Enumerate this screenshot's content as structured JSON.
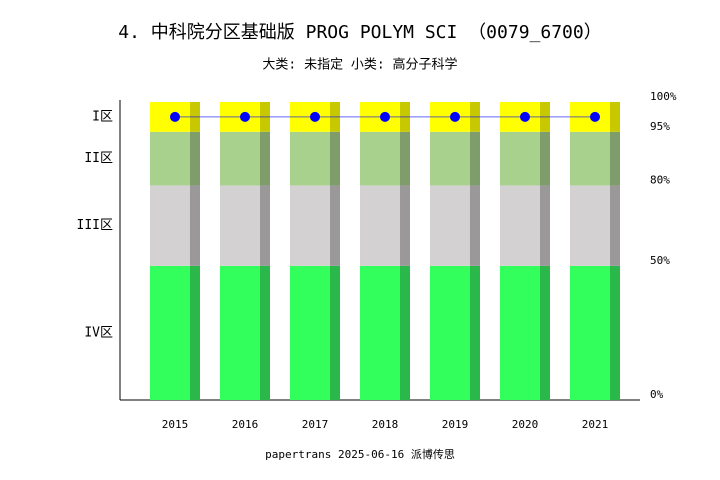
{
  "chart_data": {
    "type": "zone-bar",
    "title": "4. 中科院分区基础版 PROG POLYM SCI （0079_6700）",
    "subtitle": "大类: 未指定 小类: 高分子科学",
    "footer": "papertrans 2025-06-16 派博传思",
    "categories": [
      "2015",
      "2016",
      "2017",
      "2018",
      "2019",
      "2020",
      "2021"
    ],
    "zones": [
      {
        "name": "IV区",
        "from": 0,
        "to": 50,
        "color": "#33ff5c",
        "shade": "#2ab84a"
      },
      {
        "name": "III区",
        "from": 50,
        "to": 80,
        "color": "#d3d1d1",
        "shade": "#9a9898"
      },
      {
        "name": "II区",
        "from": 80,
        "to": 95,
        "color": "#a9d18e",
        "shade": "#7f9c6b"
      },
      {
        "name": "I区",
        "from": 95,
        "to": 100,
        "color": "#ffff00",
        "shade": "#c8c800"
      }
    ],
    "series": [
      {
        "color": "#0000ff",
        "values": [
          97.5,
          97.5,
          97.5,
          97.5,
          97.5,
          97.5,
          97.5
        ]
      }
    ],
    "ylim": [
      0,
      100
    ],
    "yticks": [
      {
        "value": 0,
        "label": "0%"
      },
      {
        "value": 50,
        "label": "50%"
      },
      {
        "value": 80,
        "label": "80%"
      },
      {
        "value": 95,
        "label": "95%"
      },
      {
        "value": 100,
        "label": "100%"
      }
    ]
  }
}
